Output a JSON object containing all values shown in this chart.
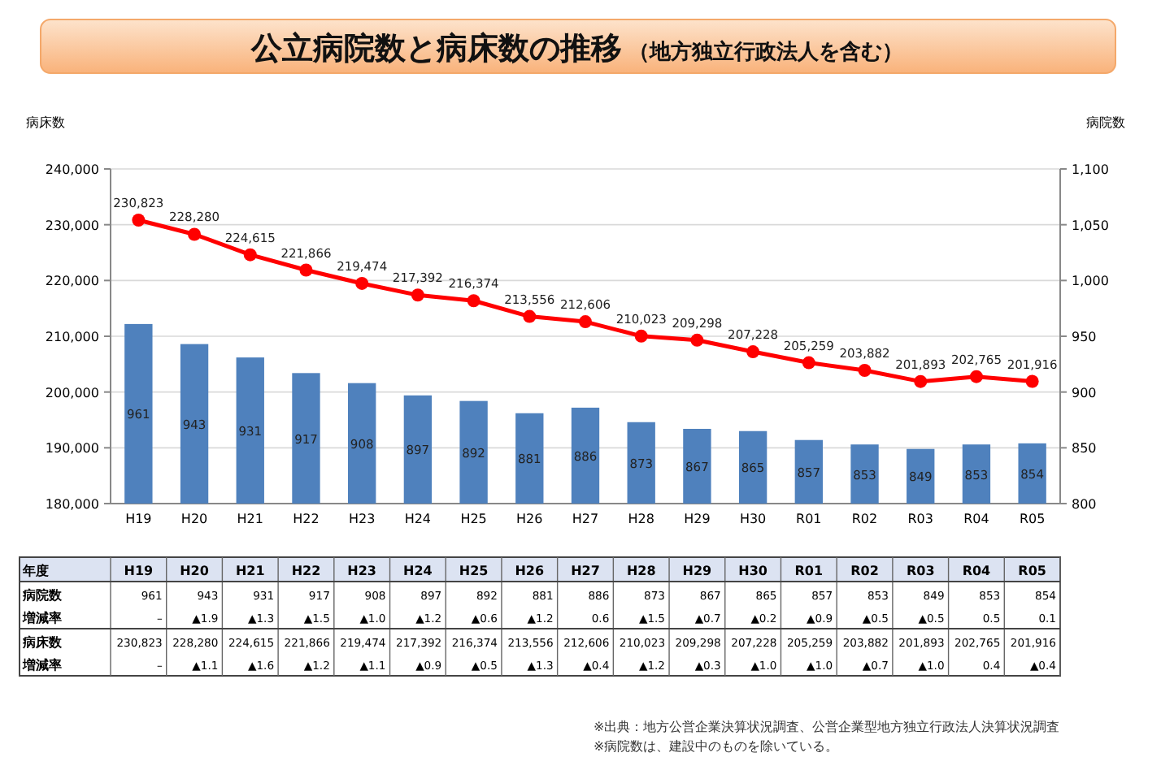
{
  "chart_data": {
    "type": "bar",
    "title": "公立病院数と病床数の推移",
    "subtitle": "（地方独立行政法人を含む）",
    "ylabel": "病床数",
    "y2label": "病院数",
    "categories": [
      "H19",
      "H20",
      "H21",
      "H22",
      "H23",
      "H24",
      "H25",
      "H26",
      "H27",
      "H28",
      "H29",
      "H30",
      "R01",
      "R02",
      "R03",
      "R04",
      "R05"
    ],
    "series": [
      {
        "axis": "y2",
        "color": "#4f81bd",
        "values": [
          961,
          943,
          931,
          917,
          908,
          897,
          892,
          881,
          886,
          873,
          867,
          865,
          857,
          853,
          849,
          853,
          854
        ],
        "value_labels": [
          "961",
          "943",
          "931",
          "917",
          "908",
          "897",
          "892",
          "881",
          "886",
          "873",
          "867",
          "865",
          "857",
          "853",
          "849",
          "853",
          "854"
        ]
      },
      {
        "type": "line",
        "axis": "y",
        "color": "#ff0000",
        "values": [
          230823,
          228280,
          224615,
          221866,
          219474,
          217392,
          216374,
          213556,
          212606,
          210023,
          209298,
          207228,
          205259,
          203882,
          201893,
          202765,
          201916
        ],
        "value_labels": [
          "230,823",
          "228,280",
          "224,615",
          "221,866",
          "219,474",
          "217,392",
          "216,374",
          "213,556",
          "212,606",
          "210,023",
          "209,298",
          "207,228",
          "205,259",
          "203,882",
          "201,893",
          "202,765",
          "201,916"
        ]
      }
    ],
    "ylim": [
      180000,
      240000
    ],
    "yticks": [
      {
        "value": 180000,
        "label": "180,000"
      },
      {
        "value": 190000,
        "label": "190,000"
      },
      {
        "value": 200000,
        "label": "200,000"
      },
      {
        "value": 210000,
        "label": "210,000"
      },
      {
        "value": 220000,
        "label": "220,000"
      },
      {
        "value": 230000,
        "label": "230,000"
      },
      {
        "value": 240000,
        "label": "240,000"
      }
    ],
    "y2lim": [
      800,
      1100
    ],
    "y2ticks": [
      800,
      850,
      900,
      950,
      {
        "value": 1000,
        "label": "1,000"
      },
      {
        "value": 1050,
        "label": "1,050"
      },
      {
        "value": 1100,
        "label": "1,100"
      }
    ],
    "grid": "y",
    "marker": "circle",
    "line_style": "solid",
    "annotations": [
      "年度",
      "病院数",
      "増減率",
      "病床数",
      "増減率",
      "–",
      "▲1.9",
      "▲1.3",
      "▲1.5",
      "▲1.0",
      "▲1.2",
      "▲0.6",
      "▲1.2",
      "0.6",
      "▲1.5",
      "▲0.7",
      "▲0.2",
      "▲0.9",
      "▲0.5",
      "▲0.5",
      "0.5",
      "0.1",
      "–",
      "▲1.1",
      "▲1.6",
      "▲1.2",
      "▲1.1",
      "▲0.9",
      "▲0.5",
      "▲1.3",
      "▲0.4",
      "▲1.2",
      "▲0.3",
      "▲1.0",
      "▲1.0",
      "▲0.7",
      "▲1.0",
      "0.4",
      "▲0.4",
      "※出典：地方公営企業決算状況調査、公営企業型地方独立行政法人決算状況調査",
      "※病院数は、建設中のものを除いている。"
    ]
  }
}
